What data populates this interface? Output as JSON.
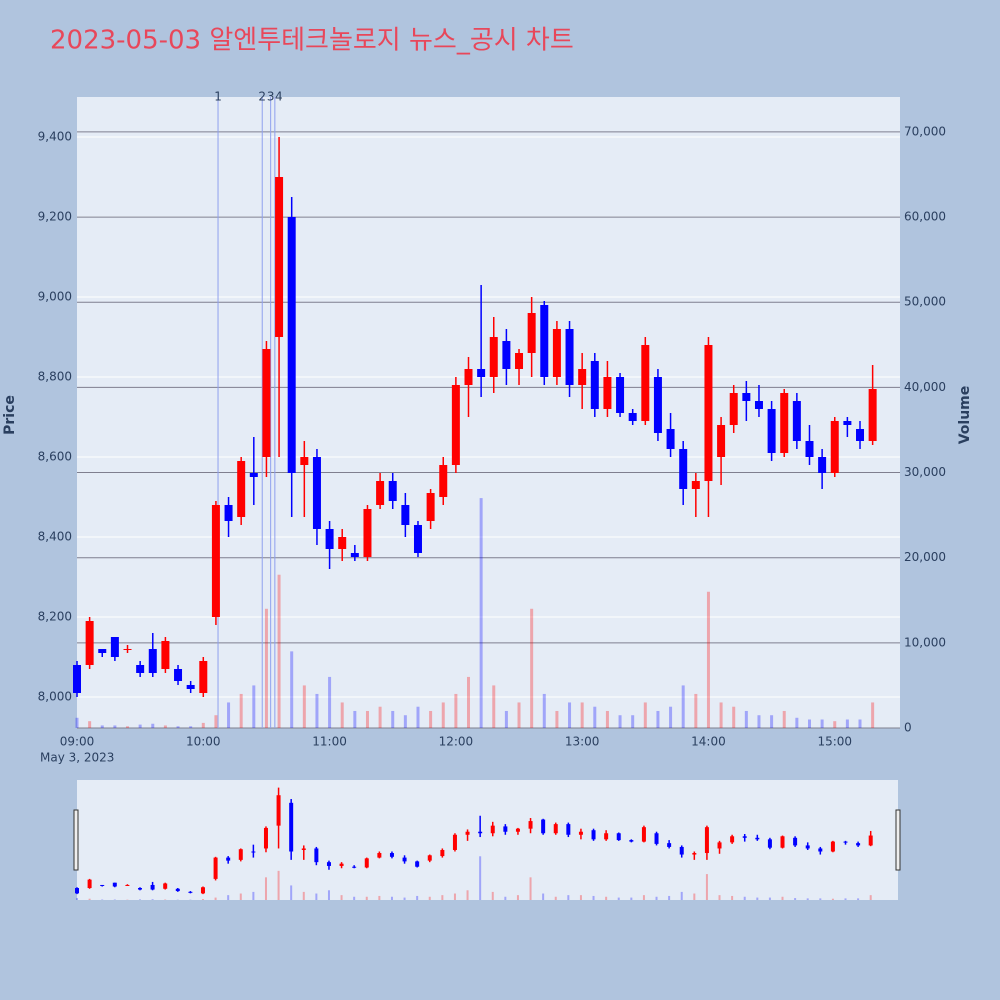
{
  "chart_data": {
    "type": "candlestick",
    "title": "2023-05-03 알엔투테크놀로지 뉴스_공시 차트",
    "ylabel": "Price",
    "y2label": "Volume",
    "x_date_label": "May 3, 2023",
    "up_color": "#ff0000",
    "down_color": "#0000ff",
    "xlim": [
      "09:00",
      "15:31"
    ],
    "xticks": [
      "09:00",
      "10:00",
      "11:00",
      "12:00",
      "13:00",
      "14:00",
      "15:00"
    ],
    "ylim": [
      7922.5,
      9500
    ],
    "yticks": [
      {
        "value": 8000,
        "label": "8,000"
      },
      {
        "value": 8200,
        "label": "8,200"
      },
      {
        "value": 8400,
        "label": "8,400"
      },
      {
        "value": 8600,
        "label": "8,600"
      },
      {
        "value": 8800,
        "label": "8,800"
      },
      {
        "value": 9000,
        "label": "9,000"
      },
      {
        "value": 9200,
        "label": "9,200"
      },
      {
        "value": 9400,
        "label": "9,400"
      }
    ],
    "y2lim": [
      0,
      74100
    ],
    "y2ticks": [
      0,
      {
        "value": 10000,
        "label": "10,000"
      },
      {
        "value": 20000,
        "label": "20,000"
      },
      {
        "value": 30000,
        "label": "30,000"
      },
      {
        "value": 40000,
        "label": "40,000"
      },
      {
        "value": 50000,
        "label": "50,000"
      },
      {
        "value": 60000,
        "label": "60,000"
      },
      {
        "value": 70000,
        "label": "70,000"
      }
    ],
    "markers": [
      {
        "label": "1",
        "x": "10:07"
      },
      {
        "label": "2",
        "x": "10:28"
      },
      {
        "label": "3",
        "x": "10:32"
      },
      {
        "label": "4",
        "x": "10:34"
      }
    ],
    "x": [
      "09:00",
      "09:06",
      "09:12",
      "09:18",
      "09:24",
      "09:30",
      "09:36",
      "09:42",
      "09:48",
      "09:54",
      "10:00",
      "10:06",
      "10:12",
      "10:18",
      "10:24",
      "10:30",
      "10:36",
      "10:42",
      "10:48",
      "10:54",
      "11:00",
      "11:06",
      "11:12",
      "11:18",
      "11:24",
      "11:30",
      "11:36",
      "11:42",
      "11:48",
      "11:54",
      "12:00",
      "12:06",
      "12:12",
      "12:18",
      "12:24",
      "12:30",
      "12:36",
      "12:42",
      "12:48",
      "12:54",
      "13:00",
      "13:06",
      "13:12",
      "13:18",
      "13:24",
      "13:30",
      "13:36",
      "13:42",
      "13:48",
      "13:54",
      "14:00",
      "14:06",
      "14:12",
      "14:18",
      "14:24",
      "14:30",
      "14:36",
      "14:42",
      "14:48",
      "14:54",
      "15:00",
      "15:06",
      "15:12",
      "15:18"
    ],
    "open": [
      8080,
      8080,
      8120,
      8150,
      8120,
      8080,
      8120,
      8070,
      8070,
      8030,
      8010,
      8200,
      8480,
      8450,
      8560,
      8600,
      8900,
      9200,
      8580,
      8600,
      8420,
      8370,
      8360,
      8350,
      8480,
      8540,
      8480,
      8430,
      8440,
      8500,
      8580,
      8780,
      8820,
      8800,
      8890,
      8820,
      8860,
      8980,
      8800,
      8920,
      8780,
      8840,
      8720,
      8800,
      8710,
      8690,
      8800,
      8670,
      8620,
      8520,
      8540,
      8600,
      8680,
      8760,
      8740,
      8720,
      8610,
      8740,
      8640,
      8600,
      8560,
      8690,
      8670,
      8640
    ],
    "high": [
      8090,
      8200,
      8120,
      8150,
      8130,
      8090,
      8160,
      8150,
      8080,
      8040,
      8100,
      8490,
      8500,
      8600,
      8650,
      8890,
      9400,
      9250,
      8640,
      8620,
      8440,
      8420,
      8380,
      8480,
      8560,
      8560,
      8510,
      8440,
      8520,
      8600,
      8800,
      8850,
      9030,
      8950,
      8920,
      8870,
      9000,
      8990,
      8940,
      8940,
      8860,
      8860,
      8840,
      8810,
      8720,
      8900,
      8820,
      8710,
      8640,
      8560,
      8900,
      8700,
      8780,
      8790,
      8780,
      8740,
      8770,
      8760,
      8680,
      8620,
      8700,
      8700,
      8690,
      8830
    ],
    "low": [
      8000,
      8070,
      8100,
      8090,
      8110,
      8050,
      8050,
      8060,
      8030,
      8010,
      8000,
      8180,
      8400,
      8430,
      8480,
      8550,
      8600,
      8450,
      8450,
      8380,
      8320,
      8340,
      8340,
      8340,
      8470,
      8470,
      8400,
      8350,
      8420,
      8480,
      8560,
      8700,
      8750,
      8760,
      8780,
      8780,
      8800,
      8780,
      8780,
      8750,
      8720,
      8700,
      8700,
      8700,
      8680,
      8680,
      8640,
      8600,
      8480,
      8450,
      8450,
      8530,
      8660,
      8690,
      8700,
      8590,
      8600,
      8620,
      8580,
      8520,
      8550,
      8650,
      8620,
      8630
    ],
    "close": [
      8010,
      8190,
      8110,
      8100,
      8120,
      8060,
      8060,
      8140,
      8040,
      8020,
      8090,
      8480,
      8440,
      8590,
      8550,
      8870,
      9300,
      8560,
      8600,
      8420,
      8370,
      8400,
      8350,
      8470,
      8540,
      8490,
      8430,
      8360,
      8510,
      8580,
      8780,
      8820,
      8800,
      8900,
      8820,
      8860,
      8960,
      8800,
      8920,
      8780,
      8820,
      8720,
      8800,
      8710,
      8690,
      8880,
      8660,
      8620,
      8520,
      8540,
      8880,
      8680,
      8760,
      8740,
      8720,
      8610,
      8760,
      8640,
      8600,
      8560,
      8690,
      8680,
      8640,
      8770
    ],
    "volume": [
      1200,
      800,
      300,
      300,
      200,
      400,
      500,
      300,
      200,
      200,
      600,
      1500,
      3000,
      4000,
      5000,
      14000,
      18000,
      9000,
      5000,
      4000,
      6000,
      3000,
      2000,
      2000,
      2500,
      2000,
      1500,
      2500,
      2000,
      3000,
      4000,
      6000,
      27000,
      5000,
      2000,
      3000,
      14000,
      4000,
      2000,
      3000,
      3000,
      2500,
      2000,
      1500,
      1500,
      3000,
      2000,
      2500,
      5000,
      4000,
      16000,
      3000,
      2500,
      2000,
      1500,
      1500,
      2000,
      1200,
      1000,
      1000,
      800,
      1000,
      1000,
      3000
    ]
  }
}
